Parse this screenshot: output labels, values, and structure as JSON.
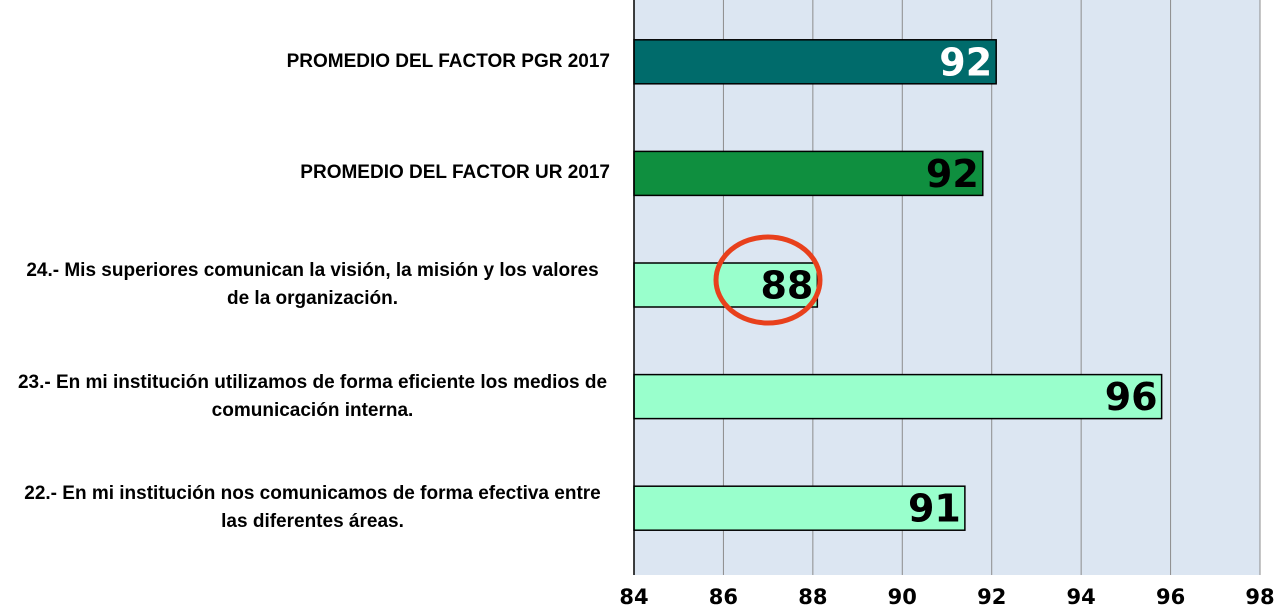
{
  "chart_data": {
    "type": "barh",
    "categories": [
      "PROMEDIO DEL FACTOR PGR 2017",
      "PROMEDIO DEL FACTOR UR 2017",
      "24.- Mis superiores comunican la visión, la misión y los valores de la organización.",
      "23.- En mi institución utilizamos de forma eficiente los medios de comunicación interna.",
      "22.- En mi institución nos comunicamos de forma efectiva entre las diferentes áreas."
    ],
    "values": [
      92.1,
      91.8,
      88.1,
      95.8,
      91.4
    ],
    "value_labels": [
      "92",
      "92",
      "88",
      "96",
      "91"
    ],
    "colors": [
      "#006b6b",
      "#0f8f3f",
      "#99ffcc",
      "#99ffcc",
      "#99ffcc"
    ],
    "label_colors": [
      "#ffffff",
      "#000000",
      "#000000",
      "#000000",
      "#000000"
    ],
    "xlim": [
      84,
      98
    ],
    "xticks": [
      84,
      86,
      88,
      90,
      92,
      94,
      96,
      98
    ],
    "grid": true
  }
}
